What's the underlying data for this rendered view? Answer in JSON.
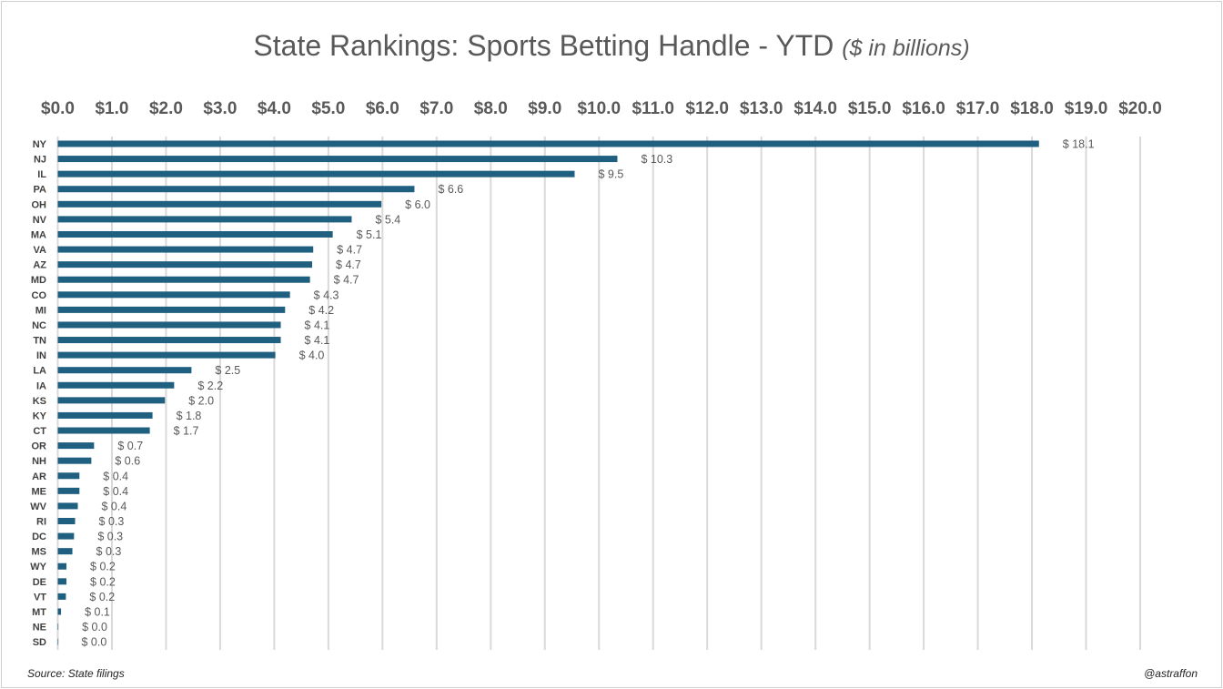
{
  "chart_data": {
    "type": "bar",
    "orientation": "horizontal",
    "title": "State Rankings: Sports Betting Handle - YTD",
    "subtitle": "($ in billions)",
    "source": "Source: State filings",
    "credit": "@astraffon",
    "xlim": [
      0,
      20
    ],
    "x_ticks": [
      "$0.0",
      "$1.0",
      "$2.0",
      "$3.0",
      "$4.0",
      "$5.0",
      "$6.0",
      "$7.0",
      "$8.0",
      "$9.0",
      "$10.0",
      "$11.0",
      "$12.0",
      "$13.0",
      "$14.0",
      "$15.0",
      "$16.0",
      "$17.0",
      "$18.0",
      "$19.0",
      "$20.0"
    ],
    "x_axis_position": "top",
    "grid": true,
    "bar_color": "#1f5f80",
    "categories": [
      "NY",
      "NJ",
      "IL",
      "PA",
      "OH",
      "NV",
      "MA",
      "VA",
      "AZ",
      "MD",
      "CO",
      "MI",
      "NC",
      "TN",
      "IN",
      "LA",
      "IA",
      "KS",
      "KY",
      "CT",
      "OR",
      "NH",
      "AR",
      "ME",
      "WV",
      "RI",
      "DC",
      "MS",
      "WY",
      "DE",
      "VT",
      "MT",
      "NE",
      "SD"
    ],
    "values": [
      18.13,
      10.34,
      9.55,
      6.59,
      5.98,
      5.43,
      5.08,
      4.72,
      4.7,
      4.66,
      4.29,
      4.2,
      4.12,
      4.12,
      4.02,
      2.47,
      2.15,
      1.98,
      1.75,
      1.7,
      0.67,
      0.62,
      0.4,
      0.4,
      0.37,
      0.32,
      0.3,
      0.27,
      0.16,
      0.16,
      0.15,
      0.06,
      0.01,
      0.0
    ],
    "data_labels": [
      "$ 18.1",
      "$ 10.3",
      "$ 9.5",
      "$ 6.6",
      "$ 6.0",
      "$ 5.4",
      "$ 5.1",
      "$ 4.7",
      "$ 4.7",
      "$ 4.7",
      "$ 4.3",
      "$ 4.2",
      "$ 4.1",
      "$ 4.1",
      "$ 4.0",
      "$ 2.5",
      "$ 2.2",
      "$ 2.0",
      "$ 1.8",
      "$ 1.7",
      "$ 0.7",
      "$ 0.6",
      "$ 0.4",
      "$ 0.4",
      "$ 0.4",
      "$ 0.3",
      "$ 0.3",
      "$ 0.3",
      "$ 0.2",
      "$ 0.2",
      "$ 0.2",
      "$ 0.1",
      "$ 0.0",
      "$ 0.0"
    ]
  }
}
